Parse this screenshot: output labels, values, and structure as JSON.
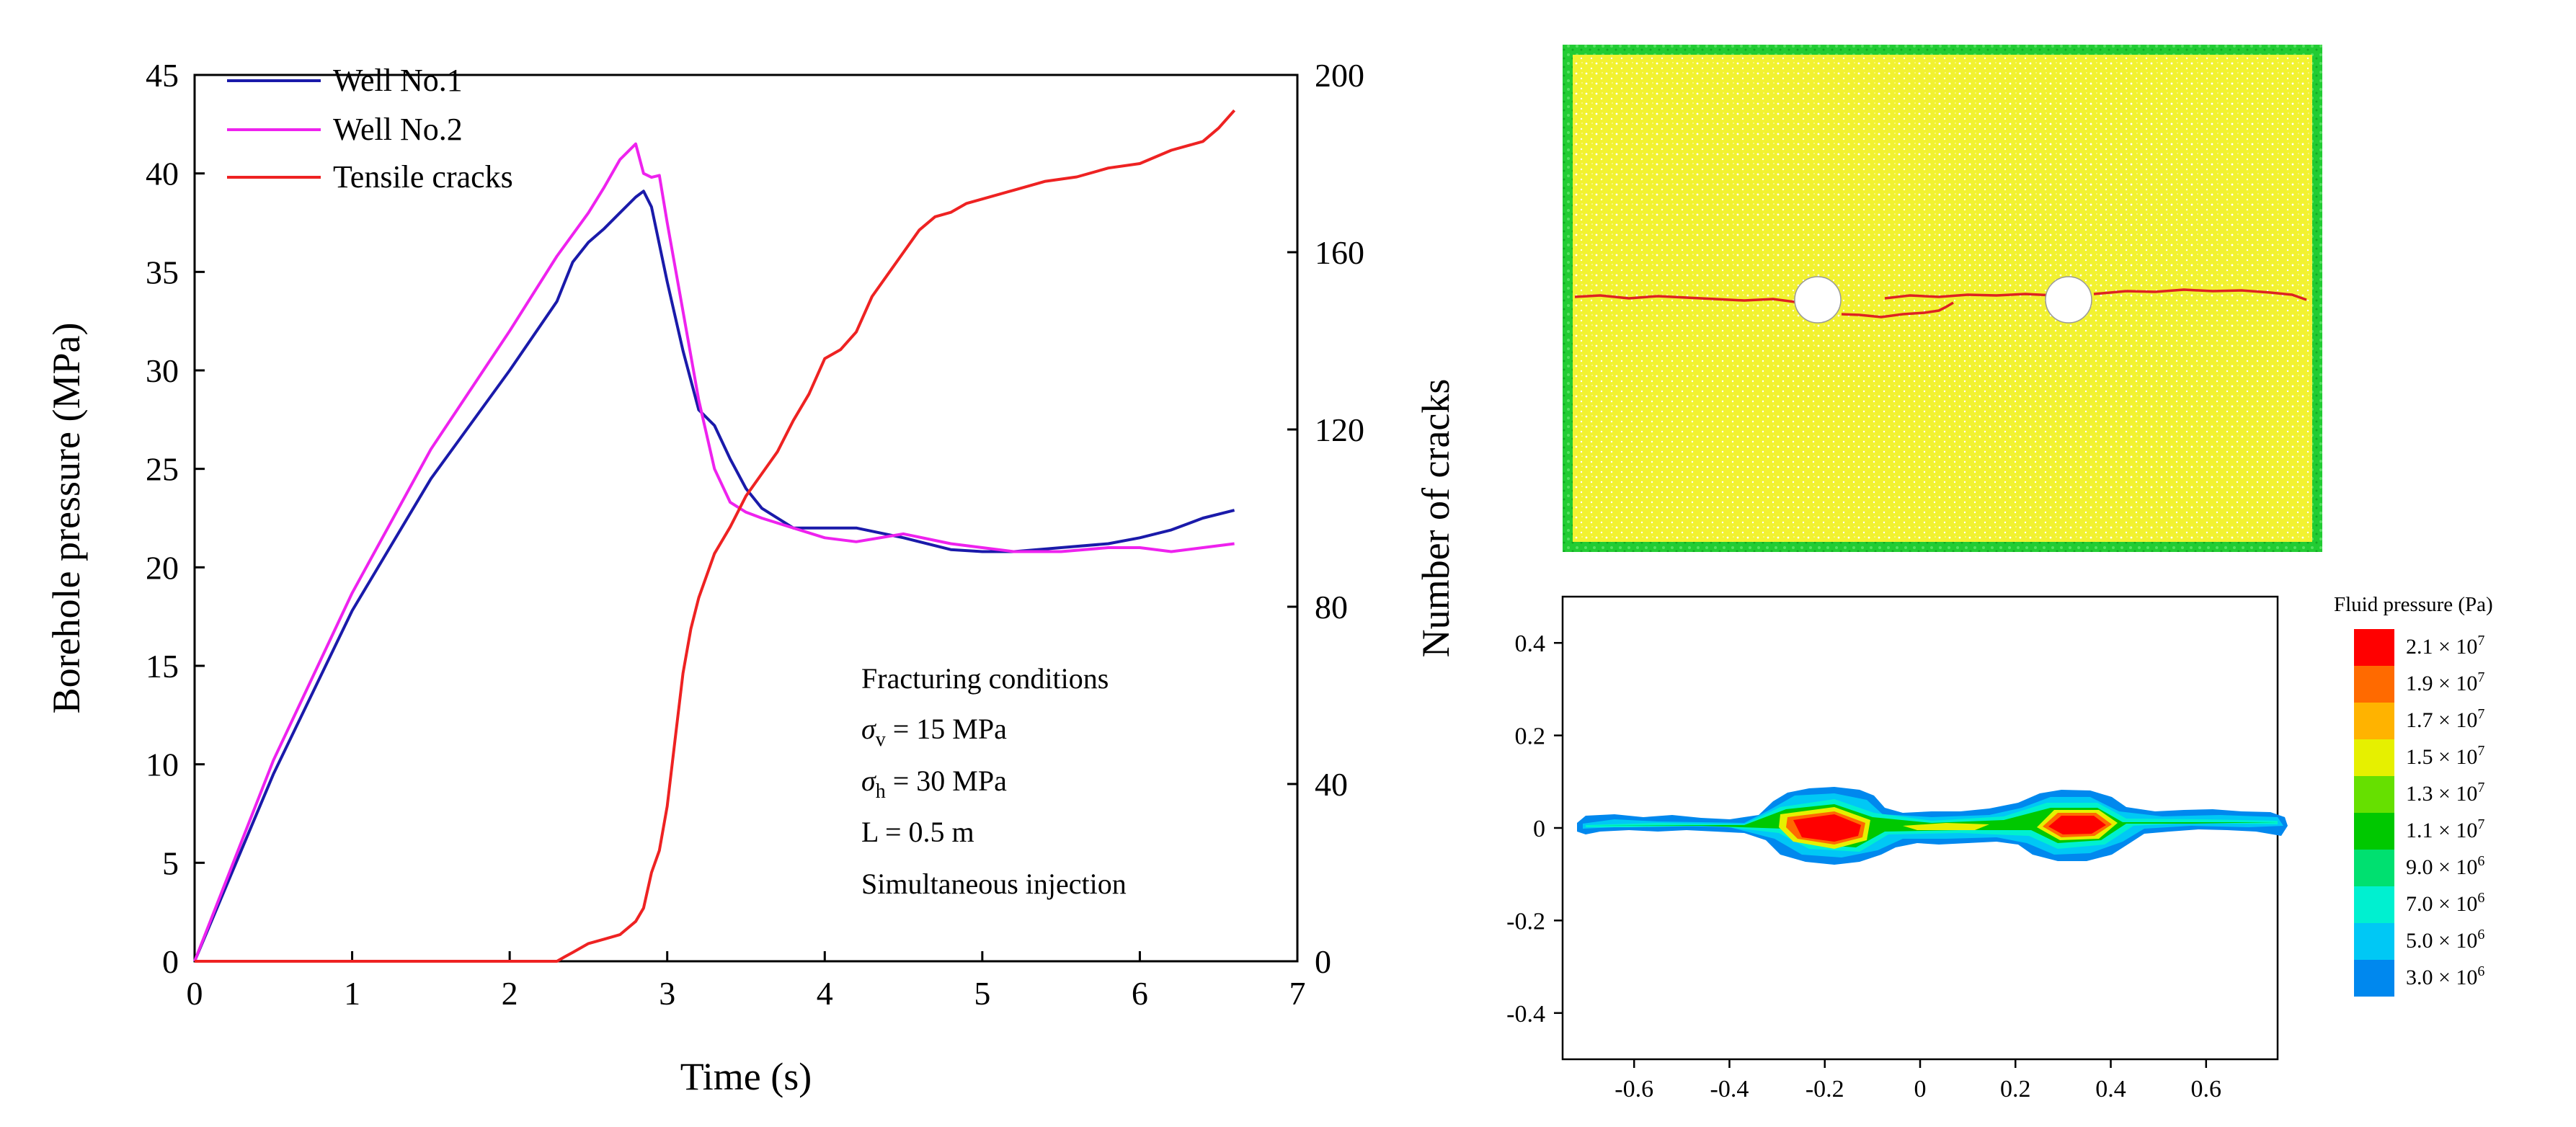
{
  "chart_data": [
    {
      "type": "line",
      "x": [
        0,
        0.5,
        1,
        1.5,
        2,
        2.3,
        2.5,
        2.6,
        2.7,
        2.8,
        2.85,
        2.9,
        3.0,
        3.1,
        3.2,
        3.3,
        3.4,
        3.5,
        3.6,
        3.8,
        4.0,
        4.2,
        4.5,
        4.8,
        5.0,
        5.2,
        5.5,
        5.8,
        6.0,
        6.2,
        6.4,
        6.6
      ],
      "series": [
        {
          "name": "Well No.1",
          "axis": "left",
          "color": "#1a1aaa",
          "points": [
            [
              0,
              0
            ],
            [
              0.5,
              9.5
            ],
            [
              1,
              17.8
            ],
            [
              1.5,
              24.5
            ],
            [
              2,
              30.0
            ],
            [
              2.3,
              33.5
            ],
            [
              2.4,
              35.5
            ],
            [
              2.5,
              36.5
            ],
            [
              2.6,
              37.2
            ],
            [
              2.7,
              38.0
            ],
            [
              2.8,
              38.8
            ],
            [
              2.85,
              39.1
            ],
            [
              2.9,
              38.3
            ],
            [
              3.0,
              34.5
            ],
            [
              3.1,
              31.0
            ],
            [
              3.2,
              28.0
            ],
            [
              3.3,
              27.2
            ],
            [
              3.4,
              25.5
            ],
            [
              3.5,
              24.0
            ],
            [
              3.6,
              23.0
            ],
            [
              3.8,
              22.0
            ],
            [
              4.0,
              22.0
            ],
            [
              4.2,
              22.0
            ],
            [
              4.5,
              21.5
            ],
            [
              4.8,
              20.9
            ],
            [
              5.0,
              20.8
            ],
            [
              5.2,
              20.8
            ],
            [
              5.5,
              21.0
            ],
            [
              5.8,
              21.2
            ],
            [
              6.0,
              21.5
            ],
            [
              6.2,
              21.9
            ],
            [
              6.4,
              22.5
            ],
            [
              6.6,
              22.9
            ]
          ]
        },
        {
          "name": "Well No.2",
          "axis": "left",
          "color": "#ee22ee",
          "points": [
            [
              0,
              0
            ],
            [
              0.5,
              10.2
            ],
            [
              1,
              18.7
            ],
            [
              1.5,
              26.0
            ],
            [
              2,
              32.0
            ],
            [
              2.3,
              35.8
            ],
            [
              2.5,
              38.0
            ],
            [
              2.6,
              39.3
            ],
            [
              2.7,
              40.7
            ],
            [
              2.8,
              41.5
            ],
            [
              2.85,
              40.0
            ],
            [
              2.9,
              39.8
            ],
            [
              2.95,
              39.9
            ],
            [
              3.0,
              37.5
            ],
            [
              3.1,
              33.0
            ],
            [
              3.2,
              28.5
            ],
            [
              3.3,
              25.0
            ],
            [
              3.4,
              23.3
            ],
            [
              3.5,
              22.8
            ],
            [
              3.6,
              22.5
            ],
            [
              3.8,
              22.0
            ],
            [
              4.0,
              21.5
            ],
            [
              4.2,
              21.3
            ],
            [
              4.5,
              21.7
            ],
            [
              4.8,
              21.2
            ],
            [
              5.0,
              21.0
            ],
            [
              5.2,
              20.8
            ],
            [
              5.5,
              20.8
            ],
            [
              5.8,
              21.0
            ],
            [
              6.0,
              21.0
            ],
            [
              6.2,
              20.8
            ],
            [
              6.4,
              21.0
            ],
            [
              6.6,
              21.2
            ]
          ]
        },
        {
          "name": "Tensile cracks",
          "axis": "right",
          "color": "#ee2222",
          "points": [
            [
              0,
              0
            ],
            [
              2.2,
              0
            ],
            [
              2.3,
              0
            ],
            [
              2.35,
              1
            ],
            [
              2.4,
              2
            ],
            [
              2.5,
              4
            ],
            [
              2.6,
              5
            ],
            [
              2.7,
              6
            ],
            [
              2.8,
              9
            ],
            [
              2.85,
              12
            ],
            [
              2.9,
              20
            ],
            [
              2.95,
              25
            ],
            [
              3.0,
              35
            ],
            [
              3.05,
              50
            ],
            [
              3.1,
              65
            ],
            [
              3.15,
              75
            ],
            [
              3.2,
              82
            ],
            [
              3.3,
              92
            ],
            [
              3.4,
              98
            ],
            [
              3.5,
              105
            ],
            [
              3.6,
              110
            ],
            [
              3.7,
              115
            ],
            [
              3.8,
              122
            ],
            [
              3.9,
              128
            ],
            [
              4.0,
              136
            ],
            [
              4.1,
              138
            ],
            [
              4.2,
              142
            ],
            [
              4.3,
              150
            ],
            [
              4.4,
              155
            ],
            [
              4.5,
              160
            ],
            [
              4.6,
              165
            ],
            [
              4.7,
              168
            ],
            [
              4.8,
              169
            ],
            [
              4.9,
              171
            ],
            [
              5.0,
              172
            ],
            [
              5.2,
              174
            ],
            [
              5.4,
              176
            ],
            [
              5.6,
              177
            ],
            [
              5.8,
              179
            ],
            [
              6.0,
              180
            ],
            [
              6.2,
              183
            ],
            [
              6.4,
              185
            ],
            [
              6.5,
              188
            ],
            [
              6.6,
              192
            ]
          ]
        }
      ],
      "xlabel": "Time (s)",
      "ylabel": "Borehole pressure (MPa)",
      "y2label": "Number of cracks",
      "xlim": [
        0,
        7
      ],
      "ylim": [
        0,
        45
      ],
      "y2lim": [
        0,
        200
      ],
      "xticks": [
        "0",
        "1",
        "2",
        "3",
        "4",
        "5",
        "6",
        "7"
      ],
      "yticks": [
        "0",
        "5",
        "10",
        "15",
        "20",
        "25",
        "30",
        "35",
        "40",
        "45"
      ],
      "y2ticks": [
        "0",
        "40",
        "80",
        "120",
        "160",
        "200"
      ],
      "legend_position": "top-left",
      "annotation": {
        "title": "Fracturing conditions",
        "sv_symbol": "σ",
        "sv_sub": "v",
        "sv_text": " = 15 MPa",
        "sh_symbol": "σ",
        "sh_sub": "h",
        "sh_text": " = 30 MPa",
        "l_text": " L = 0.5 m",
        "mode": "Simultaneous injection"
      }
    },
    {
      "type": "heatmap",
      "description_role": "particle model with fracture",
      "wells_x": [
        -0.25,
        0.25
      ],
      "colors": {
        "matrix": "#f2f230",
        "boundary": "#22cc33",
        "crack": "#dd2222",
        "well": "#ffffff"
      }
    },
    {
      "type": "heatmap",
      "xlim": [
        -0.75,
        0.75
      ],
      "ylim": [
        -0.5,
        0.5
      ],
      "xticks": [
        "-0.6",
        "-0.4",
        "-0.2",
        "0",
        "0.2",
        "0.4",
        "0.6"
      ],
      "yticks": [
        "-0.4",
        "-0.2",
        "0",
        "0.2",
        "0.4"
      ],
      "colorbar_title": "Fluid pressure (Pa)",
      "colorbar": [
        {
          "mant": "2.1",
          "exp": "7",
          "color": "#ff0000"
        },
        {
          "mant": "1.9",
          "exp": "7",
          "color": "#ff6a00"
        },
        {
          "mant": "1.7",
          "exp": "7",
          "color": "#ffb300"
        },
        {
          "mant": "1.5",
          "exp": "7",
          "color": "#e6f000"
        },
        {
          "mant": "1.3",
          "exp": "7",
          "color": "#66e000"
        },
        {
          "mant": "1.1",
          "exp": "7",
          "color": "#00c800"
        },
        {
          "mant": "9.0",
          "exp": "6",
          "color": "#00e070"
        },
        {
          "mant": "7.0",
          "exp": "6",
          "color": "#00f0d0"
        },
        {
          "mant": "5.0",
          "exp": "6",
          "color": "#00c8f5"
        },
        {
          "mant": "3.0",
          "exp": "6",
          "color": "#0088ee"
        }
      ],
      "times_symbol": "×",
      "base": "10"
    }
  ]
}
